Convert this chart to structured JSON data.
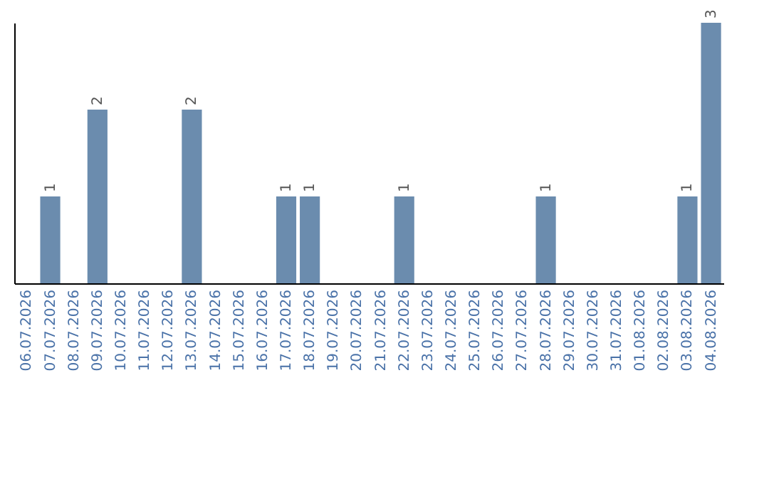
{
  "chart_data": {
    "type": "bar",
    "categories": [
      "06.07.2026",
      "07.07.2026",
      "08.07.2026",
      "09.07.2026",
      "10.07.2026",
      "11.07.2026",
      "12.07.2026",
      "13.07.2026",
      "14.07.2026",
      "15.07.2026",
      "16.07.2026",
      "17.07.2026",
      "18.07.2026",
      "19.07.2026",
      "20.07.2026",
      "21.07.2026",
      "22.07.2026",
      "23.07.2026",
      "24.07.2026",
      "25.07.2026",
      "26.07.2026",
      "27.07.2026",
      "28.07.2026",
      "29.07.2026",
      "30.07.2026",
      "31.07.2026",
      "01.08.2026",
      "02.08.2026",
      "03.08.2026",
      "04.08.2026"
    ],
    "values": [
      0,
      1,
      0,
      2,
      0,
      0,
      0,
      2,
      0,
      0,
      0,
      1,
      1,
      0,
      0,
      0,
      1,
      0,
      0,
      0,
      0,
      0,
      1,
      0,
      0,
      0,
      0,
      0,
      1,
      3
    ],
    "value_labels": [
      null,
      "1",
      null,
      "2",
      null,
      null,
      null,
      "2",
      null,
      null,
      null,
      "1",
      "1",
      null,
      null,
      null,
      "1",
      null,
      null,
      null,
      null,
      null,
      "1",
      null,
      null,
      null,
      null,
      null,
      "1",
      "3"
    ],
    "color": "#6b8cae"
  }
}
